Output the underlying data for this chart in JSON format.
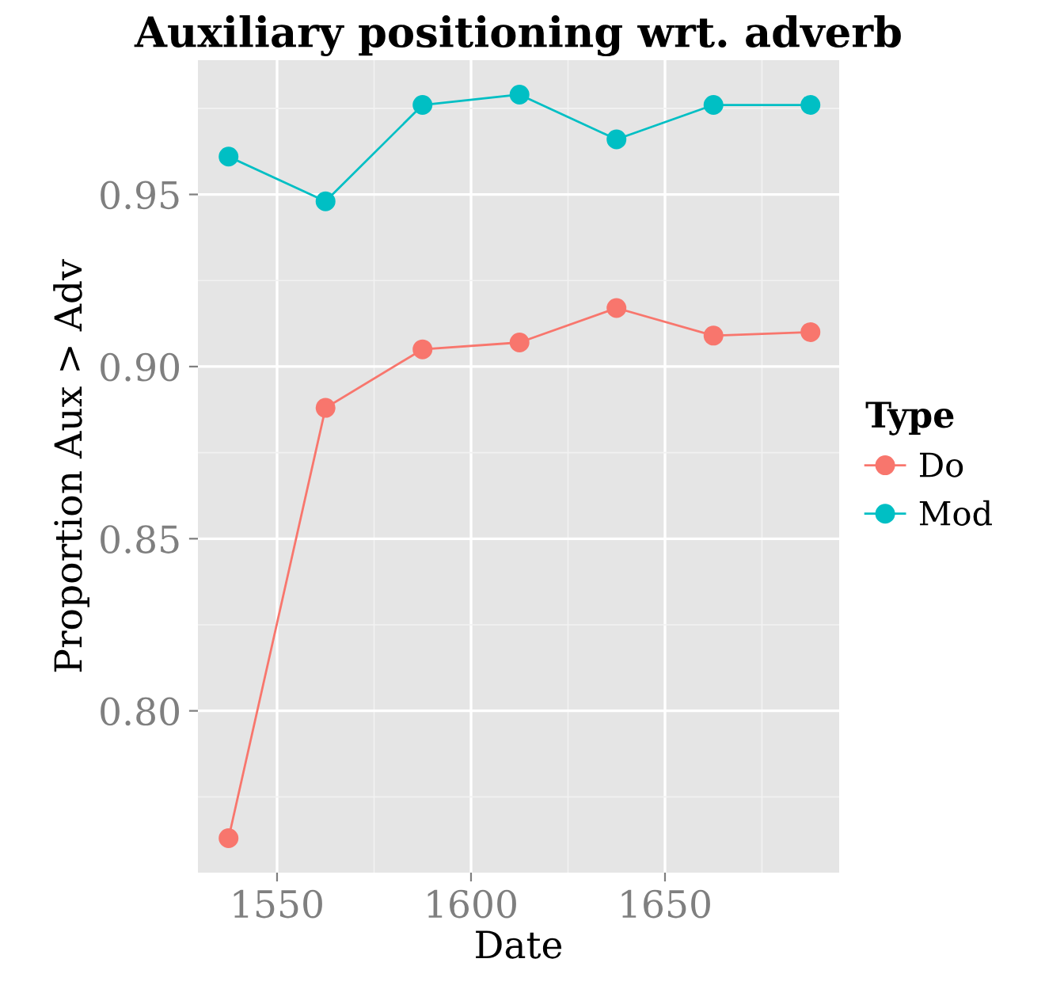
{
  "chart_data": {
    "type": "line",
    "title": "Auxiliary positioning wrt. adverb",
    "xlabel": "Date",
    "ylabel": "Proportion Aux > Adv",
    "legend_title": "Type",
    "x": [
      1537.5,
      1562.5,
      1587.5,
      1612.5,
      1637.5,
      1662.5,
      1687.5
    ],
    "series": [
      {
        "name": "Do",
        "color": "#f8766d",
        "values": [
          0.763,
          0.888,
          0.905,
          0.907,
          0.917,
          0.909,
          0.91
        ]
      },
      {
        "name": "Mod",
        "color": "#00bfc4",
        "values": [
          0.961,
          0.948,
          0.976,
          0.979,
          0.966,
          0.976,
          0.976
        ]
      }
    ],
    "xlim": [
      1529.6,
      1694.9
    ],
    "ylim": [
      0.753,
      0.989
    ],
    "xticks": [
      1550,
      1600,
      1650
    ],
    "yticks": [
      {
        "value": 0.8,
        "label": "0.80"
      },
      {
        "value": 0.85,
        "label": "0.85"
      },
      {
        "value": 0.9,
        "label": "0.90"
      },
      {
        "value": 0.95,
        "label": "0.95"
      }
    ],
    "grid": true,
    "legend": "right",
    "marker": "circle",
    "line_style": "solid"
  }
}
